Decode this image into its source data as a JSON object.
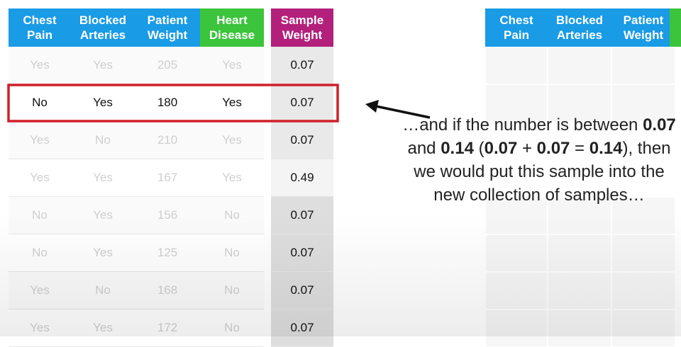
{
  "left_table": {
    "headers": [
      "Chest Pain",
      "Blocked Arteries",
      "Patient Weight",
      "Heart Disease",
      "Sample Weight"
    ],
    "rows": [
      [
        "Yes",
        "Yes",
        "205",
        "Yes",
        "0.07"
      ],
      [
        "No",
        "Yes",
        "180",
        "Yes",
        "0.07"
      ],
      [
        "Yes",
        "No",
        "210",
        "Yes",
        "0.07"
      ],
      [
        "Yes",
        "Yes",
        "167",
        "Yes",
        "0.49"
      ],
      [
        "No",
        "Yes",
        "156",
        "No",
        "0.07"
      ],
      [
        "No",
        "Yes",
        "125",
        "No",
        "0.07"
      ],
      [
        "Yes",
        "No",
        "168",
        "No",
        "0.07"
      ],
      [
        "Yes",
        "Yes",
        "172",
        "No",
        "0.07"
      ]
    ],
    "highlighted_row": 1
  },
  "right_table": {
    "headers": [
      "Chest Pain",
      "Blocked Arteries",
      "Patient Weight"
    ]
  },
  "annotation": [
    {
      "text": "…and if the number is between ",
      "bold": false
    },
    {
      "text": "0.07",
      "bold": true
    },
    {
      "text": " and ",
      "bold": false
    },
    {
      "text": "0.14",
      "bold": true
    },
    {
      "text": " (",
      "bold": false
    },
    {
      "text": "0.07",
      "bold": true
    },
    {
      "text": " + ",
      "bold": false
    },
    {
      "text": "0.07",
      "bold": true
    },
    {
      "text": " = ",
      "bold": false
    },
    {
      "text": "0.14",
      "bold": true
    },
    {
      "text": "), then we would put this sample into the new collection of samples…",
      "bold": false
    }
  ]
}
